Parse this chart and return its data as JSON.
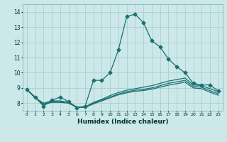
{
  "xlabel": "Humidex (Indice chaleur)",
  "ylabel": "",
  "background_color": "#cce8e8",
  "grid_color": "#aacfcf",
  "line_color": "#1a7070",
  "xlim": [
    -0.5,
    23.5
  ],
  "ylim": [
    7.5,
    14.5
  ],
  "xticks": [
    0,
    1,
    2,
    3,
    4,
    5,
    6,
    7,
    8,
    9,
    10,
    11,
    12,
    13,
    14,
    15,
    16,
    17,
    18,
    19,
    20,
    21,
    22,
    23
  ],
  "yticks": [
    8,
    9,
    10,
    11,
    12,
    13,
    14
  ],
  "lines": [
    {
      "x": [
        0,
        1,
        2,
        3,
        4,
        5,
        6,
        7,
        8,
        9,
        10,
        11,
        12,
        13,
        14,
        15,
        16,
        17,
        18,
        19,
        20,
        21,
        22,
        23
      ],
      "y": [
        8.9,
        8.4,
        7.8,
        8.2,
        8.4,
        8.1,
        7.7,
        7.8,
        9.5,
        9.5,
        10.0,
        11.5,
        13.7,
        13.85,
        13.3,
        12.1,
        11.7,
        10.9,
        10.4,
        10.0,
        9.3,
        9.2,
        9.2,
        8.8
      ],
      "marker": "D",
      "markersize": 2.5,
      "linewidth": 0.9
    },
    {
      "x": [
        0,
        1,
        2,
        3,
        4,
        5,
        6,
        7,
        8,
        9,
        10,
        11,
        12,
        13,
        14,
        15,
        16,
        17,
        18,
        19,
        20,
        21,
        22,
        23
      ],
      "y": [
        8.9,
        8.35,
        8.0,
        8.15,
        8.15,
        8.05,
        7.75,
        7.75,
        8.05,
        8.25,
        8.5,
        8.7,
        8.85,
        8.95,
        9.05,
        9.15,
        9.3,
        9.45,
        9.55,
        9.65,
        9.2,
        9.15,
        8.95,
        8.75
      ],
      "marker": null,
      "markersize": 0,
      "linewidth": 0.9
    },
    {
      "x": [
        0,
        1,
        2,
        3,
        4,
        5,
        6,
        7,
        8,
        9,
        10,
        11,
        12,
        13,
        14,
        15,
        16,
        17,
        18,
        19,
        20,
        21,
        22,
        23
      ],
      "y": [
        8.9,
        8.35,
        7.95,
        8.1,
        8.1,
        8.05,
        7.75,
        7.75,
        8.0,
        8.2,
        8.4,
        8.6,
        8.75,
        8.85,
        8.9,
        9.0,
        9.15,
        9.3,
        9.4,
        9.5,
        9.1,
        9.05,
        8.82,
        8.62
      ],
      "marker": null,
      "markersize": 0,
      "linewidth": 0.9
    },
    {
      "x": [
        0,
        1,
        2,
        3,
        4,
        5,
        6,
        7,
        8,
        9,
        10,
        11,
        12,
        13,
        14,
        15,
        16,
        17,
        18,
        19,
        20,
        21,
        22,
        23
      ],
      "y": [
        8.9,
        8.35,
        7.9,
        8.05,
        8.05,
        8.0,
        7.72,
        7.72,
        7.95,
        8.15,
        8.35,
        8.55,
        8.68,
        8.78,
        8.83,
        8.92,
        9.05,
        9.18,
        9.28,
        9.38,
        9.0,
        8.95,
        8.72,
        8.52
      ],
      "marker": null,
      "markersize": 0,
      "linewidth": 0.9
    }
  ]
}
